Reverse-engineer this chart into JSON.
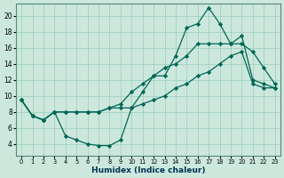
{
  "xlabel": "Humidex (Indice chaleur)",
  "bg_color": "#cce8dd",
  "grid_color": "#99ccbb",
  "line_color": "#006655",
  "xlim": [
    -0.5,
    23.5
  ],
  "ylim": [
    2.5,
    21.5
  ],
  "yticks": [
    4,
    6,
    8,
    10,
    12,
    14,
    16,
    18,
    20
  ],
  "xticks": [
    0,
    1,
    2,
    3,
    4,
    5,
    6,
    7,
    8,
    9,
    10,
    11,
    12,
    13,
    14,
    15,
    16,
    17,
    18,
    19,
    20,
    21,
    22,
    23
  ],
  "line_top": [
    9.5,
    7.5,
    7.0,
    8.0,
    5.0,
    4.5,
    4.0,
    3.8,
    3.8,
    4.5,
    8.5,
    10.5,
    12.5,
    12.5,
    15.0,
    18.5,
    19.0,
    21.0,
    19.0,
    16.5,
    17.5,
    12.0,
    11.5,
    11.0
  ],
  "line_mid": [
    9.5,
    7.5,
    7.0,
    8.0,
    8.0,
    8.0,
    8.0,
    8.0,
    8.5,
    9.0,
    10.5,
    11.5,
    12.5,
    13.5,
    14.0,
    15.0,
    16.5,
    16.5,
    16.5,
    16.5,
    16.5,
    15.5,
    13.5,
    11.5
  ],
  "line_bot": [
    9.5,
    7.5,
    7.0,
    8.0,
    8.0,
    8.0,
    8.0,
    8.0,
    8.5,
    8.5,
    8.5,
    9.0,
    9.5,
    10.0,
    11.0,
    11.5,
    12.5,
    13.0,
    14.0,
    15.0,
    15.5,
    11.5,
    11.0,
    11.0
  ]
}
